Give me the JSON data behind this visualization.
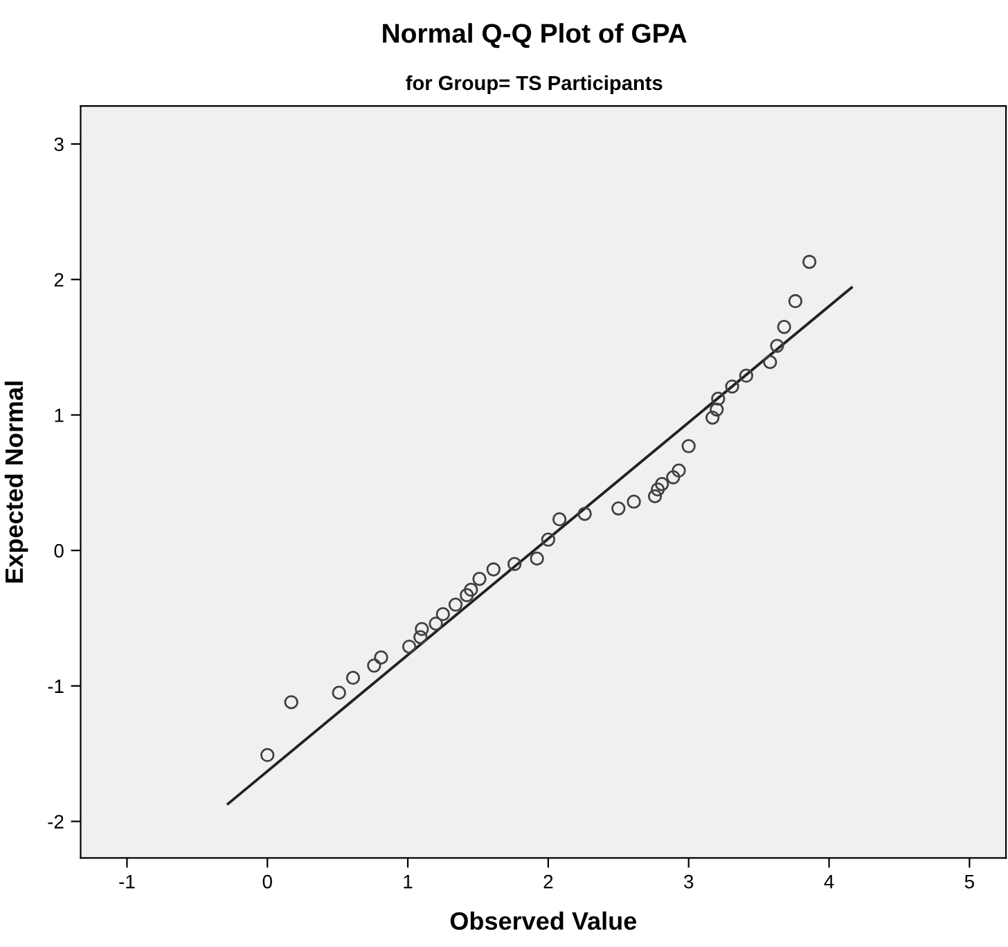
{
  "chart_data": {
    "type": "scatter",
    "title": "Normal Q-Q Plot of GPA",
    "subtitle": "for Group= TS Participants",
    "xlabel": "Observed Value",
    "ylabel": "Expected Normal",
    "xlim": [
      -1.33,
      5.26
    ],
    "ylim": [
      -2.27,
      3.28
    ],
    "xticks": [
      -1,
      0,
      1,
      2,
      3,
      4,
      5
    ],
    "yticks": [
      -2,
      -1,
      0,
      1,
      2,
      3
    ],
    "grid": false,
    "legend": false,
    "series": [
      {
        "marker": "circle",
        "color": "#404040",
        "x": [
          0.0,
          0.17,
          0.51,
          0.61,
          0.76,
          0.81,
          1.01,
          1.09,
          1.1,
          1.2,
          1.25,
          1.34,
          1.42,
          1.45,
          1.51,
          1.61,
          1.76,
          1.92,
          2.0,
          2.08,
          2.26,
          2.5,
          2.61,
          2.76,
          2.78,
          2.81,
          2.89,
          2.93,
          3.0,
          3.17,
          3.2,
          3.21,
          3.31,
          3.41,
          3.58,
          3.63,
          3.68,
          3.76,
          3.86
        ],
        "values": [
          -1.51,
          -1.12,
          -1.05,
          -0.94,
          -0.85,
          -0.79,
          -0.71,
          -0.64,
          -0.58,
          -0.54,
          -0.47,
          -0.4,
          -0.33,
          -0.29,
          -0.21,
          -0.14,
          -0.1,
          -0.06,
          0.08,
          0.23,
          0.27,
          0.31,
          0.36,
          0.4,
          0.45,
          0.49,
          0.54,
          0.59,
          0.77,
          0.98,
          1.04,
          1.12,
          1.21,
          1.29,
          1.39,
          1.51,
          1.65,
          1.84,
          2.13
        ]
      },
      {
        "type": "line",
        "marker": "none",
        "line_style": "solid",
        "color": "#222222",
        "x": [
          -0.28,
          4.16
        ],
        "values": [
          -1.87,
          1.94
        ]
      }
    ]
  }
}
